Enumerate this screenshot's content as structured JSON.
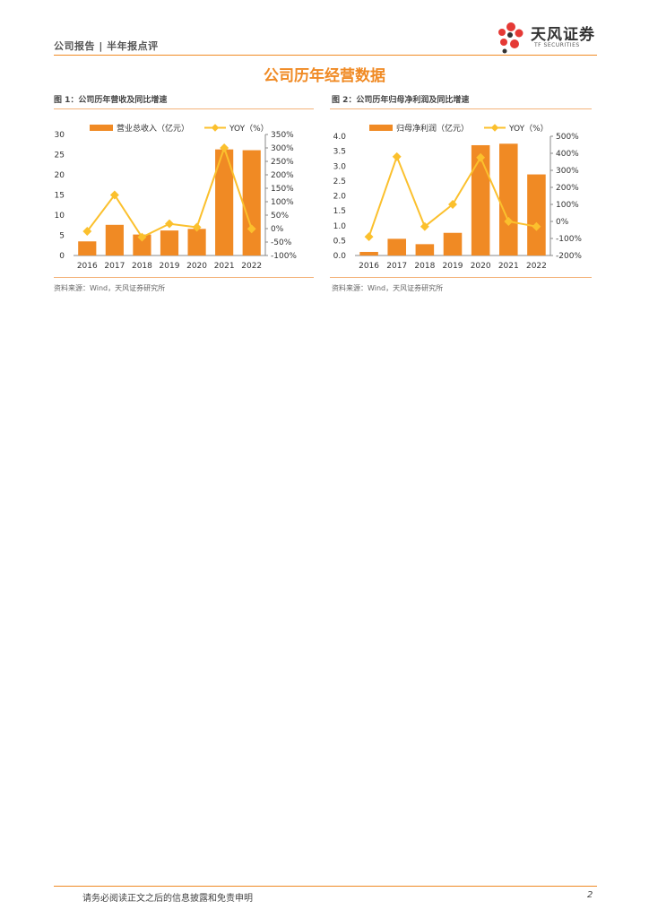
{
  "header": {
    "text": "公司报告 | 半年报点评"
  },
  "logo": {
    "name_cn": "天风证券",
    "name_en": "TF SECURITIES"
  },
  "section_title": "公司历年经营数据",
  "figures": [
    {
      "title": "图 1：公司历年营收及同比增速",
      "source": "资料来源：Wind，天风证券研究所"
    },
    {
      "title": "图 2：公司历年归母净利润及同比增速",
      "source": "资料来源：Wind，天风证券研究所"
    }
  ],
  "chart_data": [
    {
      "type": "bar",
      "categories": [
        "2016",
        "2017",
        "2018",
        "2019",
        "2020",
        "2021",
        "2022"
      ],
      "series": [
        {
          "name": "营业总收入（亿元）",
          "type": "bar",
          "axis": "left",
          "values": [
            3.5,
            7.6,
            5.2,
            6.2,
            6.6,
            26.3,
            26.1
          ]
        },
        {
          "name": "YOY（%）",
          "type": "line",
          "axis": "right",
          "values": [
            -10,
            125,
            -32,
            18,
            5,
            300,
            -1
          ]
        }
      ],
      "ylim_left": [
        0,
        30
      ],
      "yticks_left": [
        "0",
        "5",
        "10",
        "15",
        "20",
        "25",
        "30"
      ],
      "ylim_right": [
        -100,
        350
      ],
      "yticks_right": [
        "-100%",
        "-50%",
        "0%",
        "50%",
        "100%",
        "150%",
        "200%",
        "250%",
        "300%",
        "350%"
      ],
      "legend": "top",
      "colors": {
        "bar": "#f08a24",
        "line": "#fbc02d"
      }
    },
    {
      "type": "bar",
      "categories": [
        "2016",
        "2017",
        "2018",
        "2019",
        "2020",
        "2021",
        "2022"
      ],
      "series": [
        {
          "name": "归母净利润（亿元）",
          "type": "bar",
          "axis": "left",
          "values": [
            0.12,
            0.56,
            0.38,
            0.76,
            3.7,
            3.75,
            2.72
          ]
        },
        {
          "name": "YOY（%）",
          "type": "line",
          "axis": "right",
          "values": [
            -90,
            380,
            -30,
            100,
            375,
            0,
            -30
          ]
        }
      ],
      "ylim_left": [
        0,
        4
      ],
      "yticks_left": [
        "0.0",
        "0.5",
        "1.0",
        "1.5",
        "2.0",
        "2.5",
        "3.0",
        "3.5",
        "4.0"
      ],
      "ylim_right": [
        -200,
        500
      ],
      "yticks_right": [
        "-200%",
        "-100%",
        "0%",
        "100%",
        "200%",
        "300%",
        "400%",
        "500%"
      ],
      "legend": "top",
      "colors": {
        "bar": "#f08a24",
        "line": "#fbc02d"
      }
    }
  ],
  "footer": {
    "disclaimer": "请务必阅读正文之后的信息披露和免责申明",
    "page_number": "2"
  }
}
